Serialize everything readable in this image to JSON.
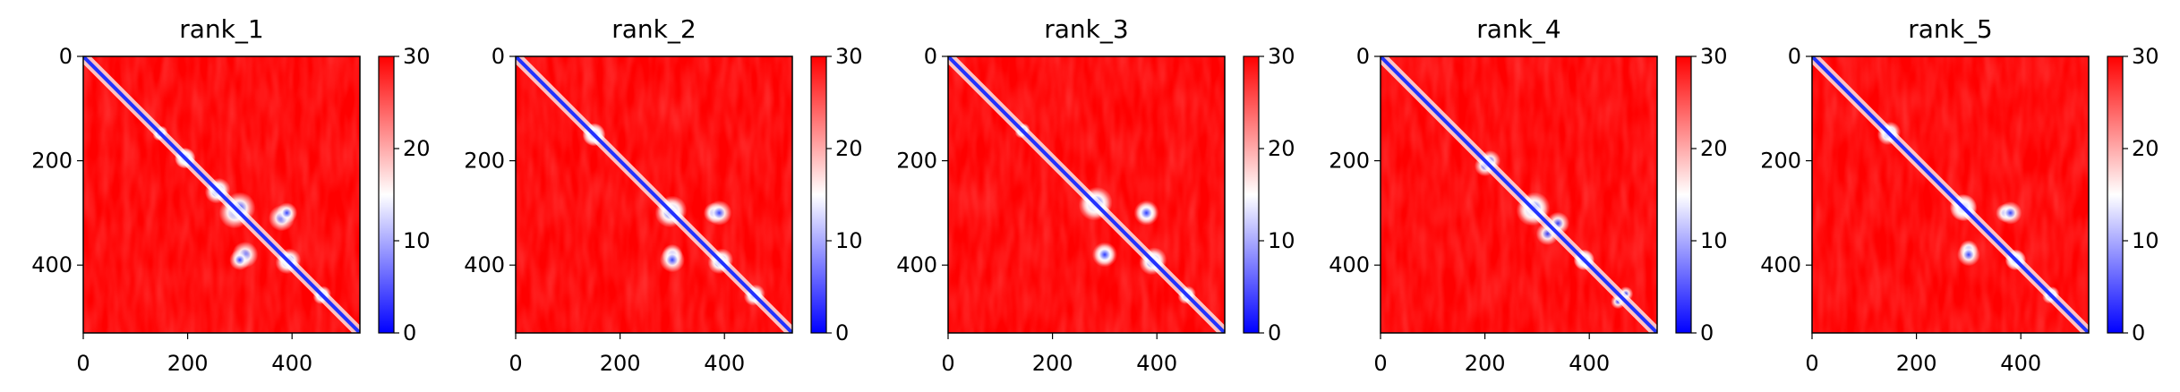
{
  "chart_data": [
    {
      "type": "heatmap",
      "title": "rank_1",
      "size": 530,
      "xticks": [
        0,
        200,
        400
      ],
      "yticks": [
        0,
        200,
        400
      ],
      "xlim": [
        0,
        530
      ],
      "ylim": [
        530,
        0
      ],
      "colorbar": {
        "ticks": [
          0,
          10,
          20,
          30
        ],
        "range": [
          0,
          30
        ],
        "colormap": "bwr"
      },
      "low_regions": [
        {
          "x": 195,
          "y": 195,
          "r": 20
        },
        {
          "x": 260,
          "y": 255,
          "r": 22
        },
        {
          "x": 290,
          "y": 300,
          "r": 30
        },
        {
          "x": 390,
          "y": 395,
          "r": 22
        },
        {
          "x": 310,
          "y": 380,
          "r": 25
        },
        {
          "x": 390,
          "y": 300,
          "r": 20
        },
        {
          "x": 460,
          "y": 455,
          "r": 15
        },
        {
          "x": 150,
          "y": 145,
          "r": 12
        }
      ]
    },
    {
      "type": "heatmap",
      "title": "rank_2",
      "size": 530,
      "xticks": [
        0,
        200,
        400
      ],
      "yticks": [
        0,
        200,
        400
      ],
      "xlim": [
        0,
        530
      ],
      "ylim": [
        530,
        0
      ],
      "colorbar": {
        "ticks": [
          0,
          10,
          20,
          30
        ],
        "range": [
          0,
          30
        ],
        "colormap": "bwr"
      },
      "low_regions": [
        {
          "x": 150,
          "y": 150,
          "r": 22
        },
        {
          "x": 300,
          "y": 295,
          "r": 28
        },
        {
          "x": 380,
          "y": 300,
          "r": 20
        },
        {
          "x": 395,
          "y": 390,
          "r": 22
        },
        {
          "x": 300,
          "y": 390,
          "r": 24
        },
        {
          "x": 460,
          "y": 455,
          "r": 18
        }
      ]
    },
    {
      "type": "heatmap",
      "title": "rank_3",
      "size": 530,
      "xticks": [
        0,
        200,
        400
      ],
      "yticks": [
        0,
        200,
        400
      ],
      "xlim": [
        0,
        530
      ],
      "ylim": [
        530,
        0
      ],
      "colorbar": {
        "ticks": [
          0,
          10,
          20,
          30
        ],
        "range": [
          0,
          30
        ],
        "colormap": "bwr"
      },
      "low_regions": [
        {
          "x": 140,
          "y": 145,
          "r": 12
        },
        {
          "x": 280,
          "y": 285,
          "r": 30
        },
        {
          "x": 380,
          "y": 300,
          "r": 20
        },
        {
          "x": 395,
          "y": 390,
          "r": 24
        },
        {
          "x": 300,
          "y": 380,
          "r": 24
        },
        {
          "x": 460,
          "y": 455,
          "r": 15
        }
      ]
    },
    {
      "type": "heatmap",
      "title": "rank_4",
      "size": 530,
      "xticks": [
        0,
        200,
        400
      ],
      "yticks": [
        0,
        200,
        400
      ],
      "xlim": [
        0,
        530
      ],
      "ylim": [
        530,
        0
      ],
      "colorbar": {
        "ticks": [
          0,
          10,
          20,
          30
        ],
        "range": [
          0,
          30
        ],
        "colormap": "bwr"
      },
      "low_regions": [
        {
          "x": 210,
          "y": 200,
          "r": 20
        },
        {
          "x": 290,
          "y": 295,
          "r": 30
        },
        {
          "x": 340,
          "y": 320,
          "r": 22
        },
        {
          "x": 390,
          "y": 390,
          "r": 20
        },
        {
          "x": 470,
          "y": 455,
          "r": 14
        }
      ]
    },
    {
      "type": "heatmap",
      "title": "rank_5",
      "size": 530,
      "xticks": [
        0,
        200,
        400
      ],
      "yticks": [
        0,
        200,
        400
      ],
      "xlim": [
        0,
        530
      ],
      "ylim": [
        530,
        0
      ],
      "colorbar": {
        "ticks": [
          0,
          10,
          20,
          30
        ],
        "range": [
          0,
          30
        ],
        "colormap": "bwr"
      },
      "low_regions": [
        {
          "x": 150,
          "y": 145,
          "r": 20
        },
        {
          "x": 290,
          "y": 290,
          "r": 26
        },
        {
          "x": 370,
          "y": 300,
          "r": 18
        },
        {
          "x": 390,
          "y": 390,
          "r": 20
        },
        {
          "x": 300,
          "y": 380,
          "r": 22
        },
        {
          "x": 460,
          "y": 455,
          "r": 14
        }
      ]
    }
  ]
}
